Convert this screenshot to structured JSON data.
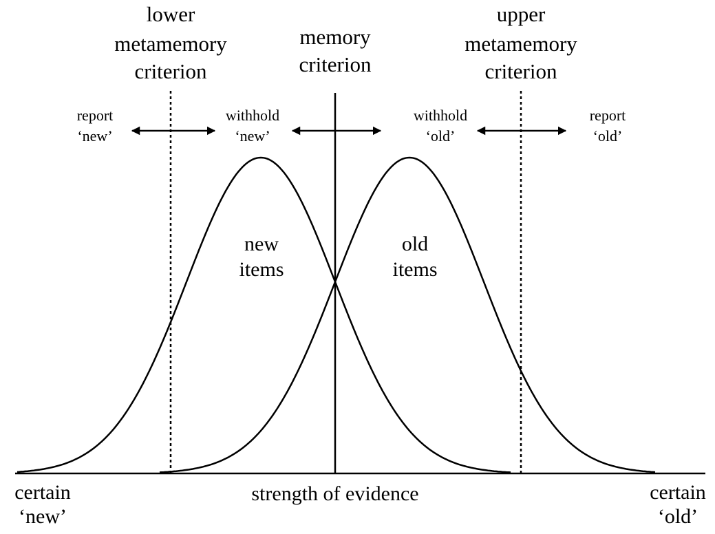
{
  "criteria": {
    "lower": [
      "lower",
      "metamemory",
      "criterion"
    ],
    "memory": [
      "memory",
      "criterion"
    ],
    "upper": [
      "upper",
      "metamemory",
      "criterion"
    ]
  },
  "regions": [
    [
      "report",
      "‘new’"
    ],
    [
      "withhold",
      "‘new’"
    ],
    [
      "withhold",
      "‘old’"
    ],
    [
      "report",
      "‘old’"
    ]
  ],
  "distributions": [
    [
      "new",
      "items"
    ],
    [
      "old",
      "items"
    ]
  ],
  "axis": {
    "label": "strength of evidence",
    "left": [
      "certain",
      "‘new’"
    ],
    "right": [
      "certain",
      "‘old’"
    ]
  }
}
